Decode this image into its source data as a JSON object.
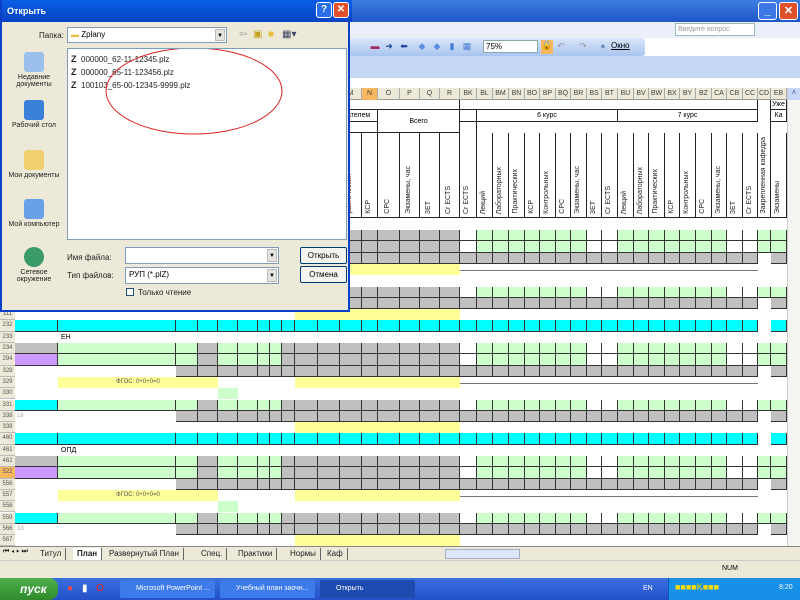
{
  "excel": {
    "ask_placeholder": "Введите вопрос",
    "zoom": "75%",
    "window_menu": "Окно",
    "columns": [
      "M",
      "N",
      "O",
      "P",
      "Q",
      "R",
      "BK",
      "BL",
      "BM",
      "BN",
      "BO",
      "BP",
      "BQ",
      "BR",
      "BS",
      "BT",
      "BU",
      "BV",
      "BW",
      "BX",
      "BY",
      "BZ",
      "CA",
      "CB",
      "CC",
      "CD",
      "EB"
    ],
    "active_column": "N",
    "headers": {
      "partial_group": "ателем",
      "partial_sub": "х",
      "total": "Всего",
      "course6": "6 курс",
      "course7": "7 курс",
      "partial_right_top": "Уже",
      "partial_right": "Ка",
      "prak_partial": "рактических",
      "ksr": "КСР",
      "total_cols": [
        "СРС",
        "Экзамены, час",
        "ЗЕТ",
        "Cr ECTS"
      ],
      "bk": "Cr ECTS",
      "course_cols": [
        "Лекций",
        "Лабораторных",
        "Практических",
        "КСР",
        "Контрольных",
        "СРС",
        "Экзамены, час",
        "ЗЕТ",
        "Cr ECTS"
      ],
      "cd": "Закрепленная кафедра",
      "eb": "Экзамены"
    },
    "rows": [
      {
        "type": "green",
        "variant": "gray"
      },
      {
        "type": "green",
        "variant": "gray"
      },
      {
        "type": "gray"
      },
      {
        "type": "yellowline",
        "text": ""
      },
      {
        "type": "blank"
      },
      {
        "type": "green",
        "variant": "gray"
      },
      {
        "type": "gray"
      },
      {
        "num": "111",
        "type": "yellowonly"
      },
      {
        "num": "232",
        "type": "cyan"
      },
      {
        "num": "233",
        "type": "label",
        "text": "ЕН"
      },
      {
        "num": "234",
        "type": "green",
        "variant": "gray"
      },
      {
        "num": "294",
        "type": "green",
        "variant": "purple"
      },
      {
        "num": "328",
        "type": "gray"
      },
      {
        "num": "329",
        "type": "yellowline",
        "text": "ФГОС: 0+0+0=0"
      },
      {
        "num": "330",
        "type": "blank"
      },
      {
        "num": "331",
        "type": "green",
        "variant": "cyan"
      },
      {
        "num": "338",
        "type": "gray",
        "text": "18"
      },
      {
        "num": "339",
        "type": "yellowonly"
      },
      {
        "num": "460",
        "type": "cyan"
      },
      {
        "num": "461",
        "type": "label",
        "text": "ОПД"
      },
      {
        "num": "462",
        "type": "green",
        "variant": "gray"
      },
      {
        "num": "522",
        "type": "green",
        "variant": "purple",
        "active": true
      },
      {
        "num": "556",
        "type": "gray"
      },
      {
        "num": "557",
        "type": "yellowline",
        "text": "ФГОС: 0+0+0=0"
      },
      {
        "num": "558",
        "type": "blank"
      },
      {
        "num": "559",
        "type": "green",
        "variant": "cyan"
      },
      {
        "num": "566",
        "type": "gray",
        "text": "33"
      },
      {
        "num": "567",
        "type": "yellowonly"
      }
    ],
    "sheet_tabs": [
      "Титул",
      "План",
      "Развернутый План",
      "Спец.",
      "Практики",
      "Нормы",
      "Каф"
    ],
    "active_tab": "План",
    "status_num": "NUM",
    "colors": {
      "green": "#ccffcc",
      "gray": "#c0c0c0",
      "cyan": "#00ffff",
      "yellow": "#ffff99",
      "purple": "#cc99ff",
      "active_header": "#f8b860"
    }
  },
  "dialog": {
    "title": "Открыть",
    "folder_label": "Папка:",
    "folder": "Zplany",
    "places": [
      "Недавние документы",
      "Рабочий стол",
      "Мои документы",
      "Мой компьютер",
      "Сетевое окружение"
    ],
    "files": [
      "000000_62-11-12345.plz",
      "000000_65-11-123456.plz",
      "100103_65-00-12345-9999.plz"
    ],
    "filename_label": "Имя файла:",
    "filename_value": "",
    "filetype_label": "Тип файлов:",
    "filetype_value": "РУП (*.plZ)",
    "readonly_label": "Только чтение",
    "open_button": "Открыть",
    "cancel_button": "Отмена"
  },
  "taskbar": {
    "start": "пуск",
    "tasks": [
      "Microsoft PowerPoint ...",
      "Учебный план заочн...",
      "Открыть"
    ],
    "lang": "EN",
    "clock": "8:20"
  }
}
